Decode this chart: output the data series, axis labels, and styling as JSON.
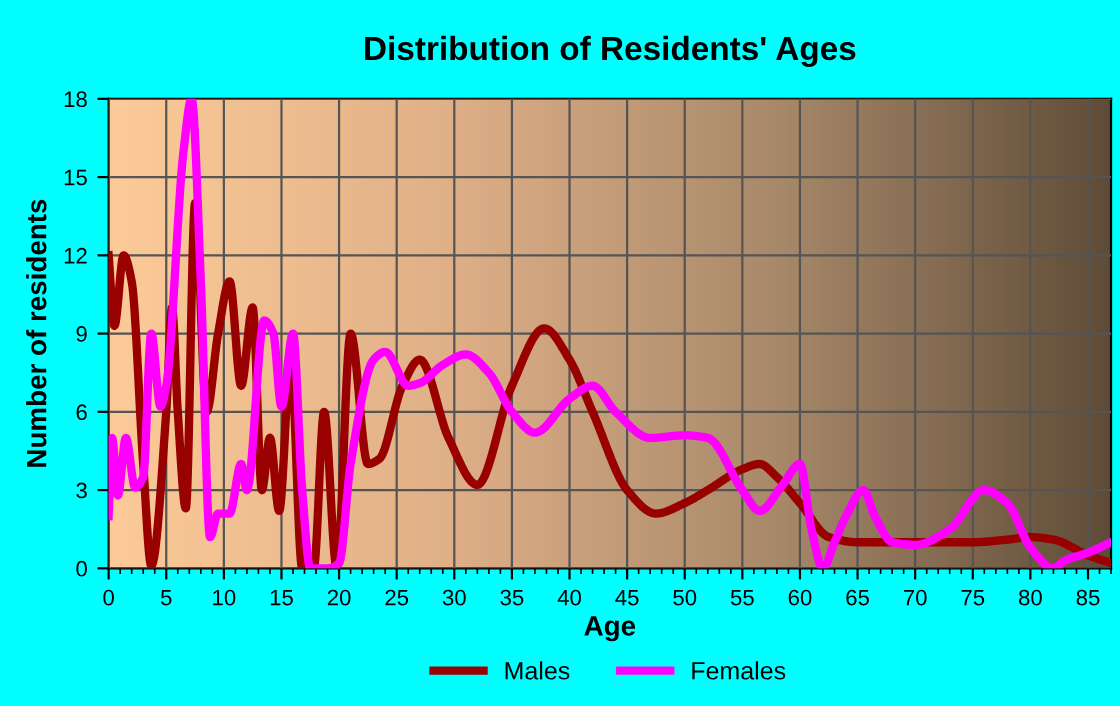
{
  "chart_data": {
    "type": "line",
    "title": "Distribution of Residents' Ages",
    "xlabel": "Age",
    "ylabel": "Number of residents",
    "xlim": [
      0,
      87
    ],
    "xticks": [
      0,
      5,
      10,
      15,
      20,
      25,
      30,
      35,
      40,
      45,
      50,
      55,
      60,
      65,
      70,
      75,
      80,
      85
    ],
    "ylim": [
      0,
      18
    ],
    "yticks": [
      0,
      3,
      6,
      9,
      12,
      15,
      18
    ],
    "grid": true,
    "legend": "bottom",
    "marker": "none",
    "line_style": "solid",
    "series": [
      {
        "name": "Males",
        "color": "#990000",
        "x": [
          0,
          0.5,
          1.3,
          2,
          3,
          3.7,
          5,
          5.5,
          6,
          6.7,
          7.5,
          8.5,
          9.5,
          10.5,
          11.5,
          12.5,
          13.3,
          14,
          14.8,
          15.8,
          16.8,
          17.8,
          18.7,
          19.8,
          21,
          22.5,
          23.5,
          25.5,
          27,
          29.5,
          32,
          35,
          37.8,
          40,
          42,
          45,
          47.5,
          50,
          52,
          55,
          56.5,
          58,
          60,
          62.5,
          65,
          70,
          75,
          78,
          80,
          82,
          85,
          87
        ],
        "values": [
          12,
          9.3,
          12,
          11,
          4,
          0.1,
          6,
          10,
          6,
          2.3,
          14,
          6,
          9,
          11,
          7,
          10,
          3,
          5,
          2.2,
          8,
          0,
          0,
          6,
          0,
          9,
          4,
          4.2,
          7,
          8,
          5,
          3.2,
          7,
          9.2,
          8,
          6,
          3,
          2.1,
          2.5,
          3,
          3.8,
          4,
          3.5,
          2.5,
          1.2,
          1,
          1,
          1,
          1.1,
          1.2,
          1.1,
          0.5,
          0.2
        ]
      },
      {
        "name": "Females",
        "color": "#ff00ff",
        "x": [
          0,
          0.3,
          0.8,
          1.5,
          2.3,
          3,
          3.7,
          4.5,
          5,
          6.5,
          7.2,
          8,
          8.8,
          9.5,
          10.5,
          11.5,
          12,
          13.5,
          14.3,
          15,
          16,
          16.8,
          17.5,
          19,
          20,
          21,
          23,
          24,
          26,
          27,
          29,
          31,
          33,
          35,
          37,
          40,
          42,
          44,
          47,
          50,
          52,
          55,
          56.5,
          58.5,
          60,
          61,
          62,
          63,
          64,
          65.5,
          66.5,
          68,
          70,
          73,
          76,
          78,
          80,
          82,
          83,
          85,
          87
        ],
        "values": [
          2,
          5,
          2.8,
          5,
          3.1,
          3.5,
          9,
          6.2,
          7,
          16,
          18,
          11,
          1.2,
          2.1,
          2.1,
          4,
          3,
          9.5,
          9,
          6.2,
          9,
          3,
          0,
          0,
          0.2,
          4,
          8,
          8.3,
          7,
          7.1,
          7.8,
          8.2,
          7.5,
          6,
          5.2,
          6.5,
          7,
          6,
          5,
          5.1,
          5,
          3,
          2.2,
          3.2,
          4,
          1.5,
          0,
          1,
          2,
          3,
          2,
          1,
          0.9,
          1.5,
          3,
          2.5,
          0.8,
          0,
          0.3,
          0.6,
          1
        ]
      }
    ]
  }
}
